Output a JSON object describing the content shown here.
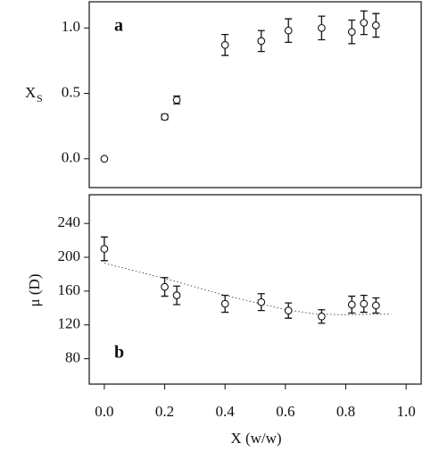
{
  "chart_data": [
    {
      "type": "scatter",
      "panel_label": "a",
      "ylabel": "X",
      "ylabel_sub": "S",
      "x": [
        0,
        0.2,
        0.24,
        0.4,
        0.52,
        0.61,
        0.72,
        0.82,
        0.86,
        0.9
      ],
      "values": [
        0,
        0.32,
        0.45,
        0.87,
        0.9,
        0.98,
        1.0,
        0.97,
        1.04,
        1.02
      ],
      "errors": [
        0,
        0.02,
        0.03,
        0.08,
        0.08,
        0.09,
        0.09,
        0.09,
        0.09,
        0.09
      ],
      "color": "#111111",
      "xlim": [
        -0.05,
        1.05
      ],
      "ylim": [
        -0.22,
        1.2
      ],
      "yticks": [
        {
          "value": 0,
          "label": "0.0"
        },
        0.5,
        {
          "value": 1,
          "label": "1.0"
        }
      ]
    },
    {
      "type": "scatter",
      "panel_label": "b",
      "ylabel": "μ (D)",
      "xlabel": "X (w/w)",
      "x": [
        0,
        0.2,
        0.24,
        0.4,
        0.52,
        0.61,
        0.72,
        0.82,
        0.86,
        0.9
      ],
      "values": [
        210,
        165,
        155,
        145,
        147,
        137,
        130,
        144,
        145,
        143
      ],
      "errors": [
        14,
        11,
        11,
        10,
        10,
        9,
        8,
        10,
        10,
        9
      ],
      "fit_line": {
        "x": [
          0,
          0.2,
          0.4,
          0.6,
          0.7,
          0.8,
          0.95
        ],
        "values": [
          193,
          175,
          155,
          138,
          133,
          132,
          133
        ]
      },
      "color": "#111111",
      "xlim": [
        -0.05,
        1.05
      ],
      "ylim": [
        50,
        274
      ],
      "xticks": [
        {
          "value": 0,
          "label": "0.0"
        },
        0.2,
        0.4,
        0.6,
        0.8,
        {
          "value": 1,
          "label": "1.0"
        }
      ],
      "yticks": [
        80,
        120,
        160,
        200,
        240
      ]
    }
  ]
}
